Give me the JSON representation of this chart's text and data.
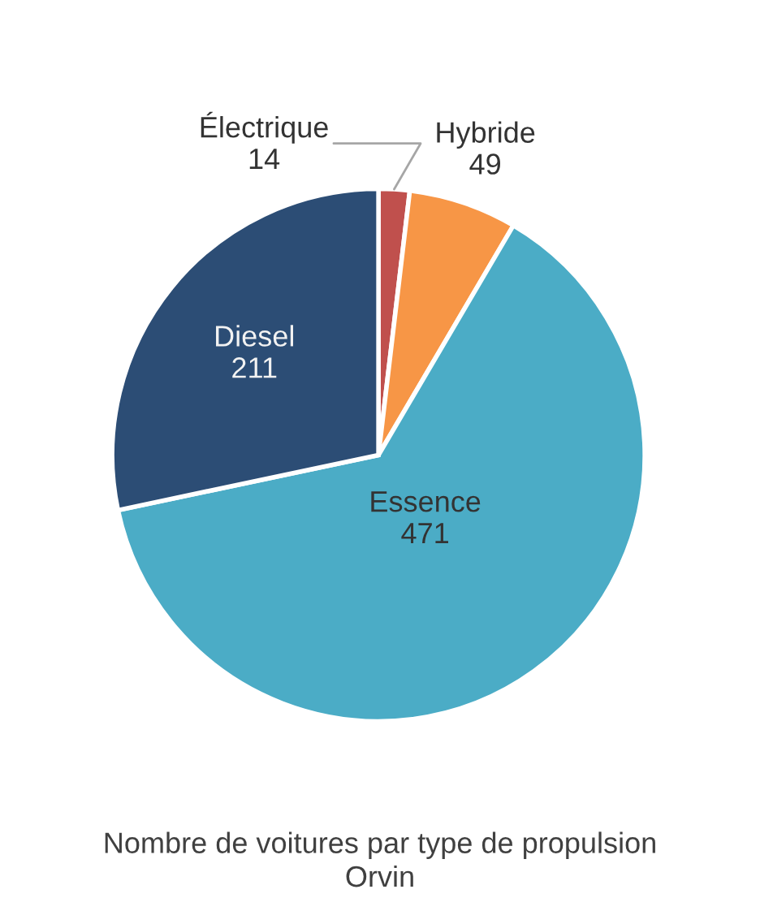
{
  "chart_data": {
    "type": "pie",
    "title": "Nombre de voitures par type de propulsion",
    "subtitle": "Orvin",
    "categories": [
      "Électrique",
      "Hybride",
      "Essence",
      "Diesel"
    ],
    "values": [
      14,
      49,
      471,
      211
    ],
    "colors": [
      "#c0504d",
      "#f79646",
      "#4bacc6",
      "#2c4d75"
    ],
    "data_labels": true
  }
}
